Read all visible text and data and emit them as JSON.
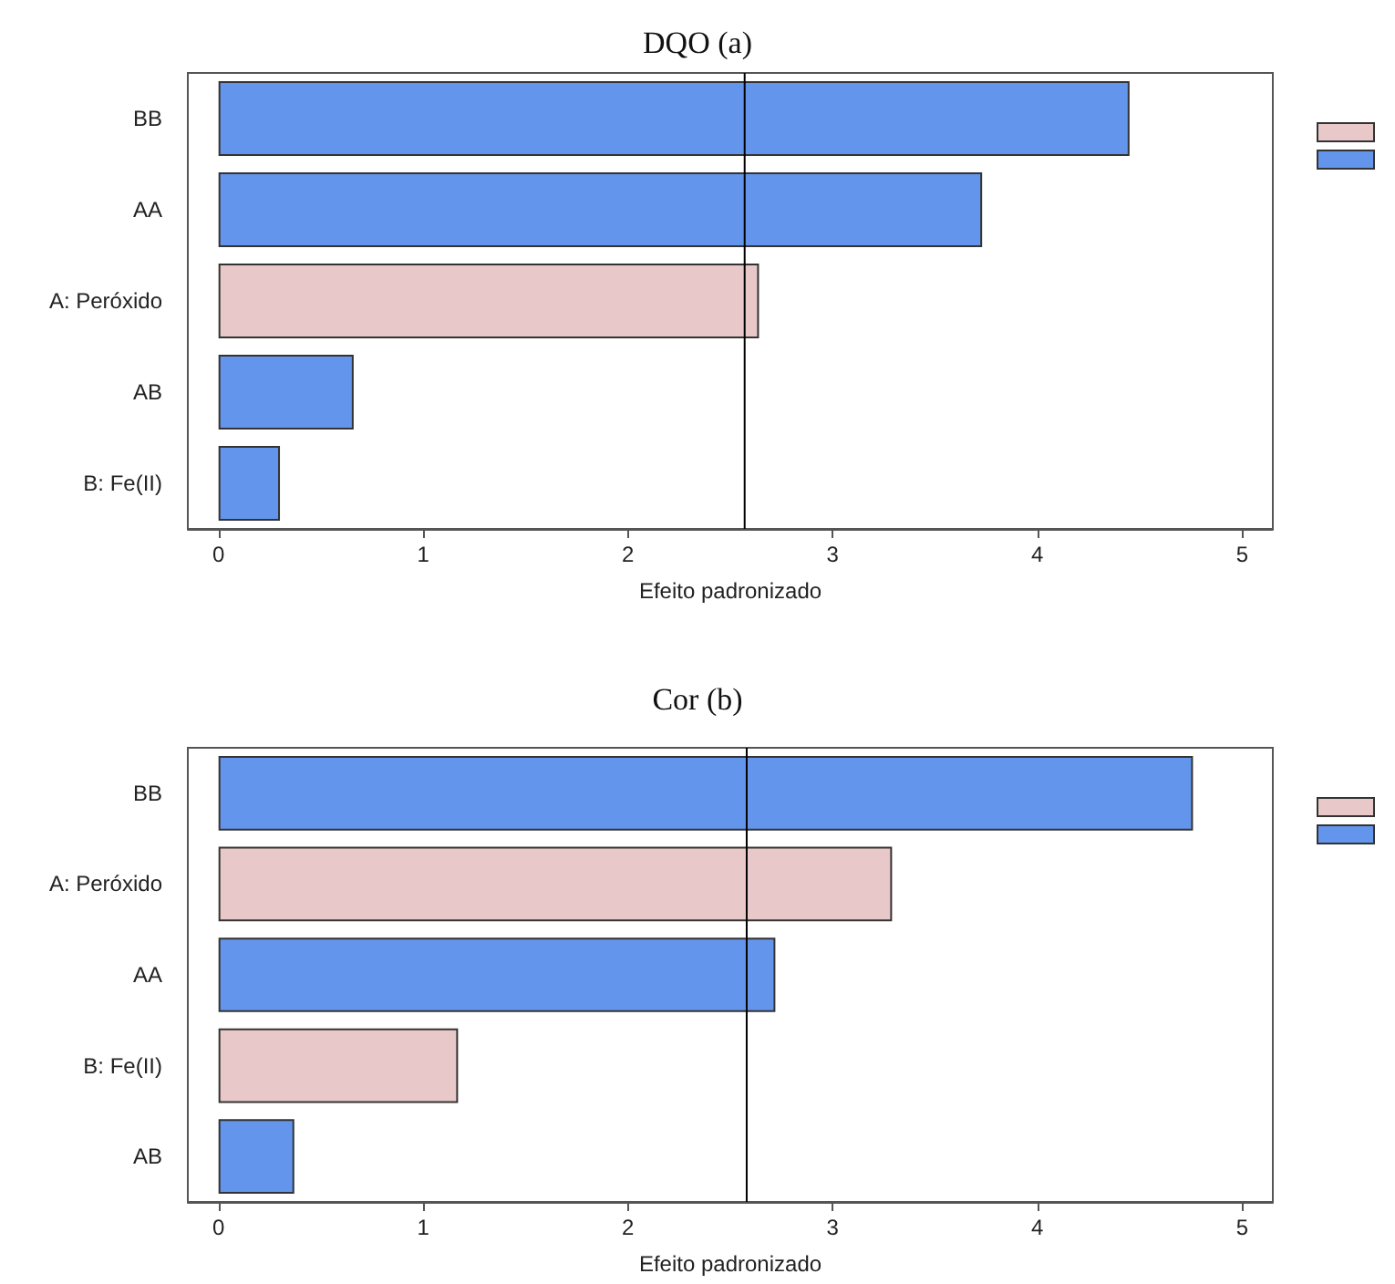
{
  "chart_data": [
    {
      "type": "bar",
      "orientation": "horizontal",
      "title": "DQO (a)",
      "xlabel": "Efeito padronizado",
      "categories": [
        "BB",
        "AA",
        "A: Peróxido",
        "AB",
        "B: Fe(II)"
      ],
      "values": [
        4.45,
        3.73,
        2.64,
        0.66,
        0.3
      ],
      "colors": [
        "#6495ed",
        "#6495ed",
        "#e8c8c8",
        "#6495ed",
        "#6495ed"
      ],
      "xlim": [
        -0.15,
        5.15
      ],
      "xticks": [
        0,
        1,
        2,
        3,
        4,
        5
      ],
      "ref_lines": [
        {
          "axis": "x",
          "value": 2.57,
          "color": "#000000"
        }
      ],
      "grid": false
    },
    {
      "type": "bar",
      "orientation": "horizontal",
      "title": "Cor (b)",
      "xlabel": "Efeito padronizado",
      "categories": [
        "BB",
        "A: Peróxido",
        "AA",
        "B: Fe(II)",
        "AB"
      ],
      "values": [
        4.76,
        3.29,
        2.72,
        1.17,
        0.37
      ],
      "colors": [
        "#6495ed",
        "#e8c8c8",
        "#6495ed",
        "#e8c8c8",
        "#6495ed"
      ],
      "xlim": [
        -0.15,
        5.15
      ],
      "xticks": [
        0,
        1,
        2,
        3,
        4,
        5
      ],
      "ref_lines": [
        {
          "axis": "x",
          "value": 2.58,
          "color": "#000000"
        }
      ],
      "grid": false
    }
  ]
}
